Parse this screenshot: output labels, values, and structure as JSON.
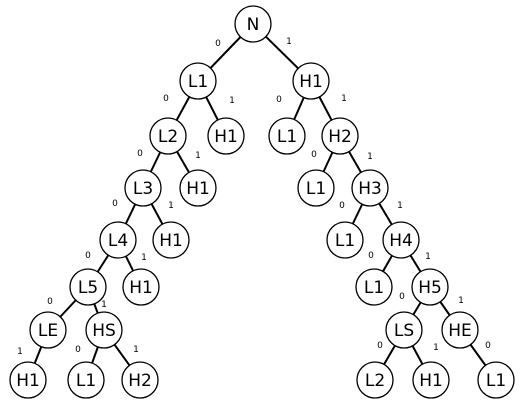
{
  "diagram": {
    "nodes": [
      {
        "id": "root",
        "label": "N"
      },
      {
        "id": "a1",
        "label": "L1"
      },
      {
        "id": "b1",
        "label": "H1"
      },
      {
        "id": "a2",
        "label": "L2"
      },
      {
        "id": "a2h",
        "label": "H1"
      },
      {
        "id": "b2l",
        "label": "L1"
      },
      {
        "id": "b2",
        "label": "H2"
      },
      {
        "id": "a3",
        "label": "L3"
      },
      {
        "id": "a3h",
        "label": "H1"
      },
      {
        "id": "b3l",
        "label": "L1"
      },
      {
        "id": "b3",
        "label": "H3"
      },
      {
        "id": "a4",
        "label": "L4"
      },
      {
        "id": "a4h",
        "label": "H1"
      },
      {
        "id": "b4l",
        "label": "L1"
      },
      {
        "id": "b4",
        "label": "H4"
      },
      {
        "id": "a5",
        "label": "L5"
      },
      {
        "id": "a5h",
        "label": "H1"
      },
      {
        "id": "b5l",
        "label": "L1"
      },
      {
        "id": "b5",
        "label": "H5"
      },
      {
        "id": "le",
        "label": "LE"
      },
      {
        "id": "hs",
        "label": "HS"
      },
      {
        "id": "ls",
        "label": "LS"
      },
      {
        "id": "he",
        "label": "HE"
      },
      {
        "id": "le_c",
        "label": "H1"
      },
      {
        "id": "hs_l",
        "label": "L1"
      },
      {
        "id": "hs_r",
        "label": "H2"
      },
      {
        "id": "ls_l",
        "label": "L2"
      },
      {
        "id": "ls_r",
        "label": "H1"
      },
      {
        "id": "he_c",
        "label": "L1"
      }
    ],
    "edges": [
      {
        "from": "root",
        "to": "a1",
        "label": "0"
      },
      {
        "from": "root",
        "to": "b1",
        "label": "1"
      },
      {
        "from": "a1",
        "to": "a2",
        "label": "0"
      },
      {
        "from": "a1",
        "to": "a2h",
        "label": "1"
      },
      {
        "from": "b1",
        "to": "b2l",
        "label": "0"
      },
      {
        "from": "b1",
        "to": "b2",
        "label": "1"
      },
      {
        "from": "a2",
        "to": "a3",
        "label": "0"
      },
      {
        "from": "a2",
        "to": "a3h",
        "label": "1"
      },
      {
        "from": "b2",
        "to": "b3l",
        "label": "0"
      },
      {
        "from": "b2",
        "to": "b3",
        "label": "1"
      },
      {
        "from": "a3",
        "to": "a4",
        "label": "0"
      },
      {
        "from": "a3",
        "to": "a4h",
        "label": "1"
      },
      {
        "from": "b3",
        "to": "b4l",
        "label": "0"
      },
      {
        "from": "b3",
        "to": "b4",
        "label": "1"
      },
      {
        "from": "a4",
        "to": "a5",
        "label": "0"
      },
      {
        "from": "a4",
        "to": "a5h",
        "label": "1"
      },
      {
        "from": "b4",
        "to": "b5l",
        "label": "0"
      },
      {
        "from": "b4",
        "to": "b5",
        "label": "1"
      },
      {
        "from": "a5",
        "to": "le",
        "label": "0"
      },
      {
        "from": "a5",
        "to": "hs",
        "label": "1"
      },
      {
        "from": "b5",
        "to": "ls",
        "label": "0"
      },
      {
        "from": "b5",
        "to": "he",
        "label": "1"
      },
      {
        "from": "le",
        "to": "le_c",
        "label": "1"
      },
      {
        "from": "hs",
        "to": "hs_l",
        "label": "0"
      },
      {
        "from": "hs",
        "to": "hs_r",
        "label": "1"
      },
      {
        "from": "ls",
        "to": "ls_l",
        "label": "0"
      },
      {
        "from": "ls",
        "to": "ls_r",
        "label": "1"
      },
      {
        "from": "he",
        "to": "he_c",
        "label": "0"
      }
    ]
  }
}
